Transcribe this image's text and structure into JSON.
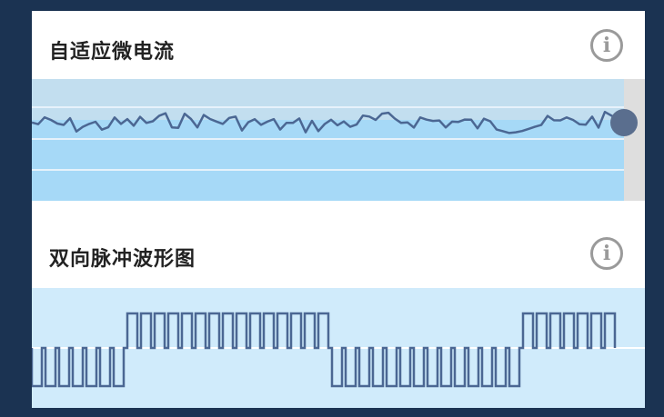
{
  "colors": {
    "background": "#1b3352",
    "card": "#ffffff",
    "graph_light": "#a6d9f7",
    "graph_band": "#c2deef",
    "graph_line": "#4b6793",
    "scrubber": "#5a6e8e",
    "gray_strip": "#dedede",
    "pulse_bg": "#d0ebfb"
  },
  "sections": [
    {
      "title": "自适应微电流",
      "info_icon": "info-icon",
      "graph": "adaptive-microcurrent-trace"
    },
    {
      "title": "双向脉冲波形图",
      "info_icon": "info-icon",
      "graph": "biphasic-pulse-waveform"
    }
  ],
  "info_glyph": "i"
}
